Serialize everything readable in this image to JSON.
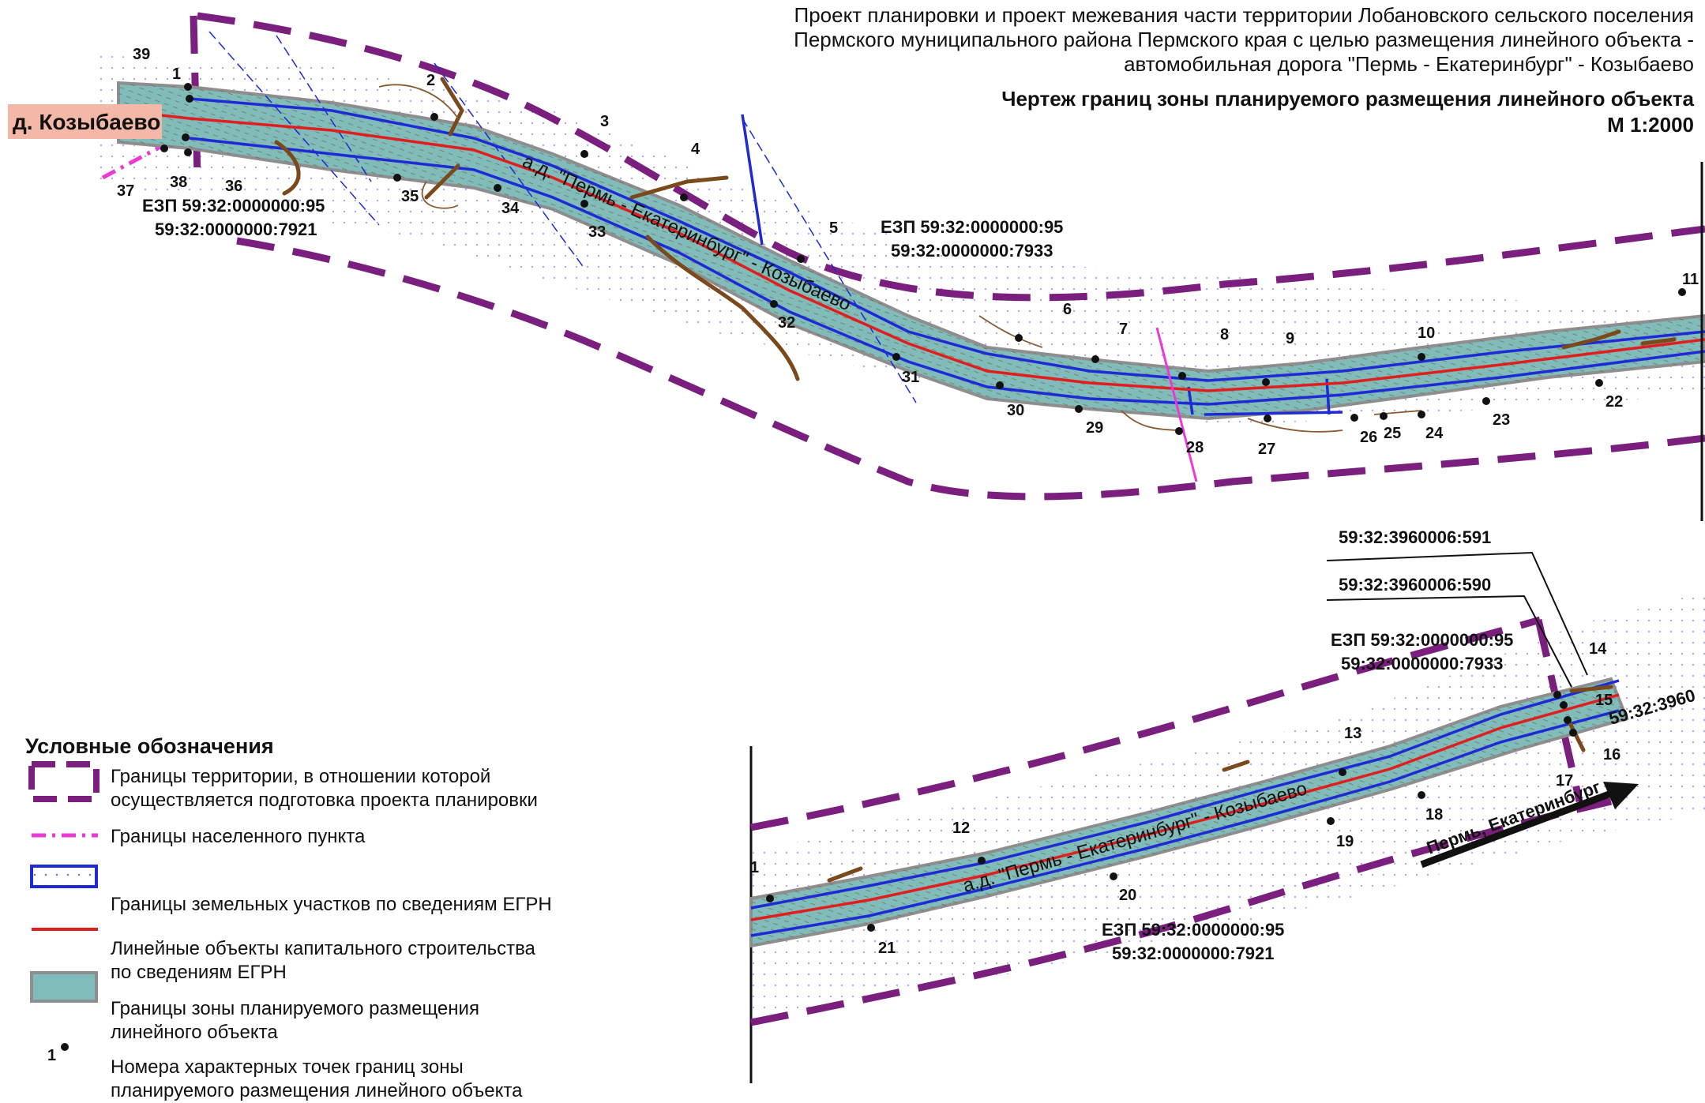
{
  "header": {
    "line1": "Проект планировки и проект межевания части территории Лобановского сельского поселения",
    "line2": "Пермского муниципального района Пермского края с целью размещения линейного объекта -",
    "line3": "автомобильная дорога \"Пермь - Екатеринбург\" - Козыбаево",
    "line4": "Чертеж границ зоны планируемого размещения линейного объекта",
    "line5": "М 1:2000"
  },
  "settlement": "д. Козыбаево",
  "road_label": "а.д. \"Пермь - Екатеринбург\" - Козыбаево",
  "direction_label": "Пермь, Екатеринбург",
  "parcels": {
    "top_left_1": "ЕЗП 59:32:0000000:95",
    "top_left_2": "59:32:0000000:7921",
    "top_mid_1": "ЕЗП 59:32:0000000:95",
    "top_mid_2": "59:32:0000000:7933",
    "bot_591": "59:32:3960006:591",
    "bot_590": "59:32:3960006:590",
    "bot_ezp_1": "ЕЗП 59:32:0000000:95",
    "bot_ezp_2": "59:32:0000000:7933",
    "bot_low_1": "ЕЗП 59:32:0000000:95",
    "bot_low_2": "59:32:0000000:7921",
    "bot_edge": "59:32:3960"
  },
  "points_top": [
    "39",
    "1",
    "2",
    "3",
    "4",
    "5",
    "6",
    "7",
    "8",
    "9",
    "10",
    "11",
    "22",
    "23",
    "24",
    "25",
    "26",
    "27",
    "28",
    "29",
    "30",
    "31",
    "32",
    "33",
    "34",
    "35",
    "36",
    "37",
    "38"
  ],
  "points_bottom": [
    "1",
    "12",
    "13",
    "14",
    "15",
    "16",
    "17",
    "18",
    "19",
    "20",
    "21"
  ],
  "legend": {
    "title": "Условные обозначения",
    "item1": "Границы территории, в отношении которой",
    "item1b": "осуществляется подготовка проекта планировки",
    "item2": "Границы населенного пункта",
    "item3": "Границы земельных участков по сведениям ЕГРН",
    "item4": "Линейные объекты капитального строительства",
    "item4b": "по сведениям ЕГРН",
    "item5": "Границы зоны планируемого размещения",
    "item5b": "линейного объекта",
    "item6": "Номера характерных точек границ зоны",
    "item6b": "планируемого размещения линейного объекта",
    "item6_sample": "1"
  },
  "colors": {
    "boundary_purple": "#7b1f7f",
    "settlement_magenta": "#e93ad8",
    "parcel_blue": "#1e2ad4",
    "road_red": "#e01e1e",
    "zone_fill": "#7fbcba",
    "zone_edge": "#8e8e8e",
    "terrain_brown": "#7a4a1c"
  }
}
